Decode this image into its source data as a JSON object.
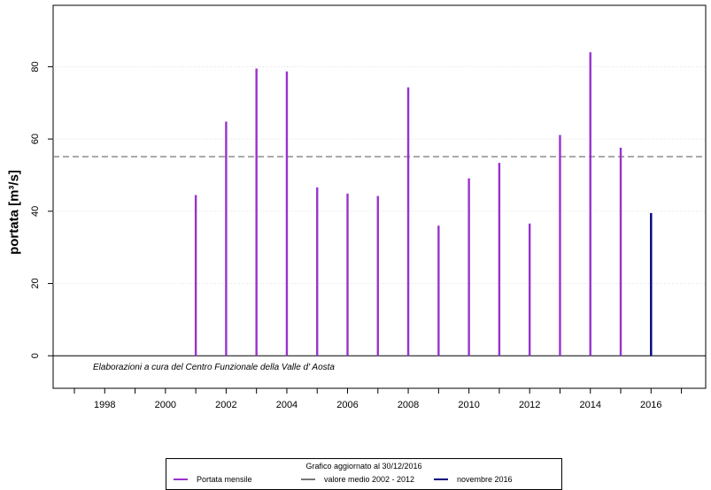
{
  "chart_data": {
    "type": "bar",
    "ylabel": "portata [m³/s]",
    "x": [
      2001,
      2002,
      2003,
      2004,
      2005,
      2006,
      2007,
      2008,
      2009,
      2010,
      2011,
      2012,
      2013,
      2014,
      2015,
      2016
    ],
    "series": [
      {
        "name": "Portata mensile",
        "color": "#9933cc",
        "x": [
          2001,
          2002,
          2003,
          2004,
          2005,
          2006,
          2007,
          2008,
          2009,
          2010,
          2011,
          2012,
          2013,
          2014,
          2015
        ],
        "values": [
          44.5,
          64.8,
          79.5,
          78.7,
          46.6,
          44.9,
          44.2,
          74.3,
          36.0,
          49.1,
          53.4,
          36.6,
          61.1,
          84.0,
          57.6
        ]
      },
      {
        "name": "novembre 2016",
        "color": "#000080",
        "x": [
          2016
        ],
        "values": [
          39.5
        ]
      }
    ],
    "reference_line": {
      "name": "valore medio  2002 - 2012",
      "value": 55.1,
      "color": "#777777",
      "style": "dashed"
    },
    "xlim": [
      1996.3,
      2017.8
    ],
    "ylim": [
      -9,
      97
    ],
    "x_tick_labels": [
      "1998",
      "2000",
      "2002",
      "2004",
      "2006",
      "2008",
      "2010",
      "2012",
      "2014",
      "2016"
    ],
    "y_ticks": [
      0,
      20,
      40,
      60,
      80
    ],
    "y_tick_labels": [
      "0",
      "20",
      "40",
      "60",
      "80"
    ],
    "grid": true,
    "annotation": "Elaborazioni a cura del Centro Funzionale della Valle d' Aosta",
    "legend": {
      "title": "Grafico aggiornato al 30/12/2016",
      "placement": "bottom-center",
      "items": [
        {
          "label": "Portata mensile",
          "color": "#9933cc"
        },
        {
          "label": "valore medio  2002 - 2012",
          "color": "#777777"
        },
        {
          "label": "novembre 2016",
          "color": "#000080"
        }
      ]
    }
  }
}
